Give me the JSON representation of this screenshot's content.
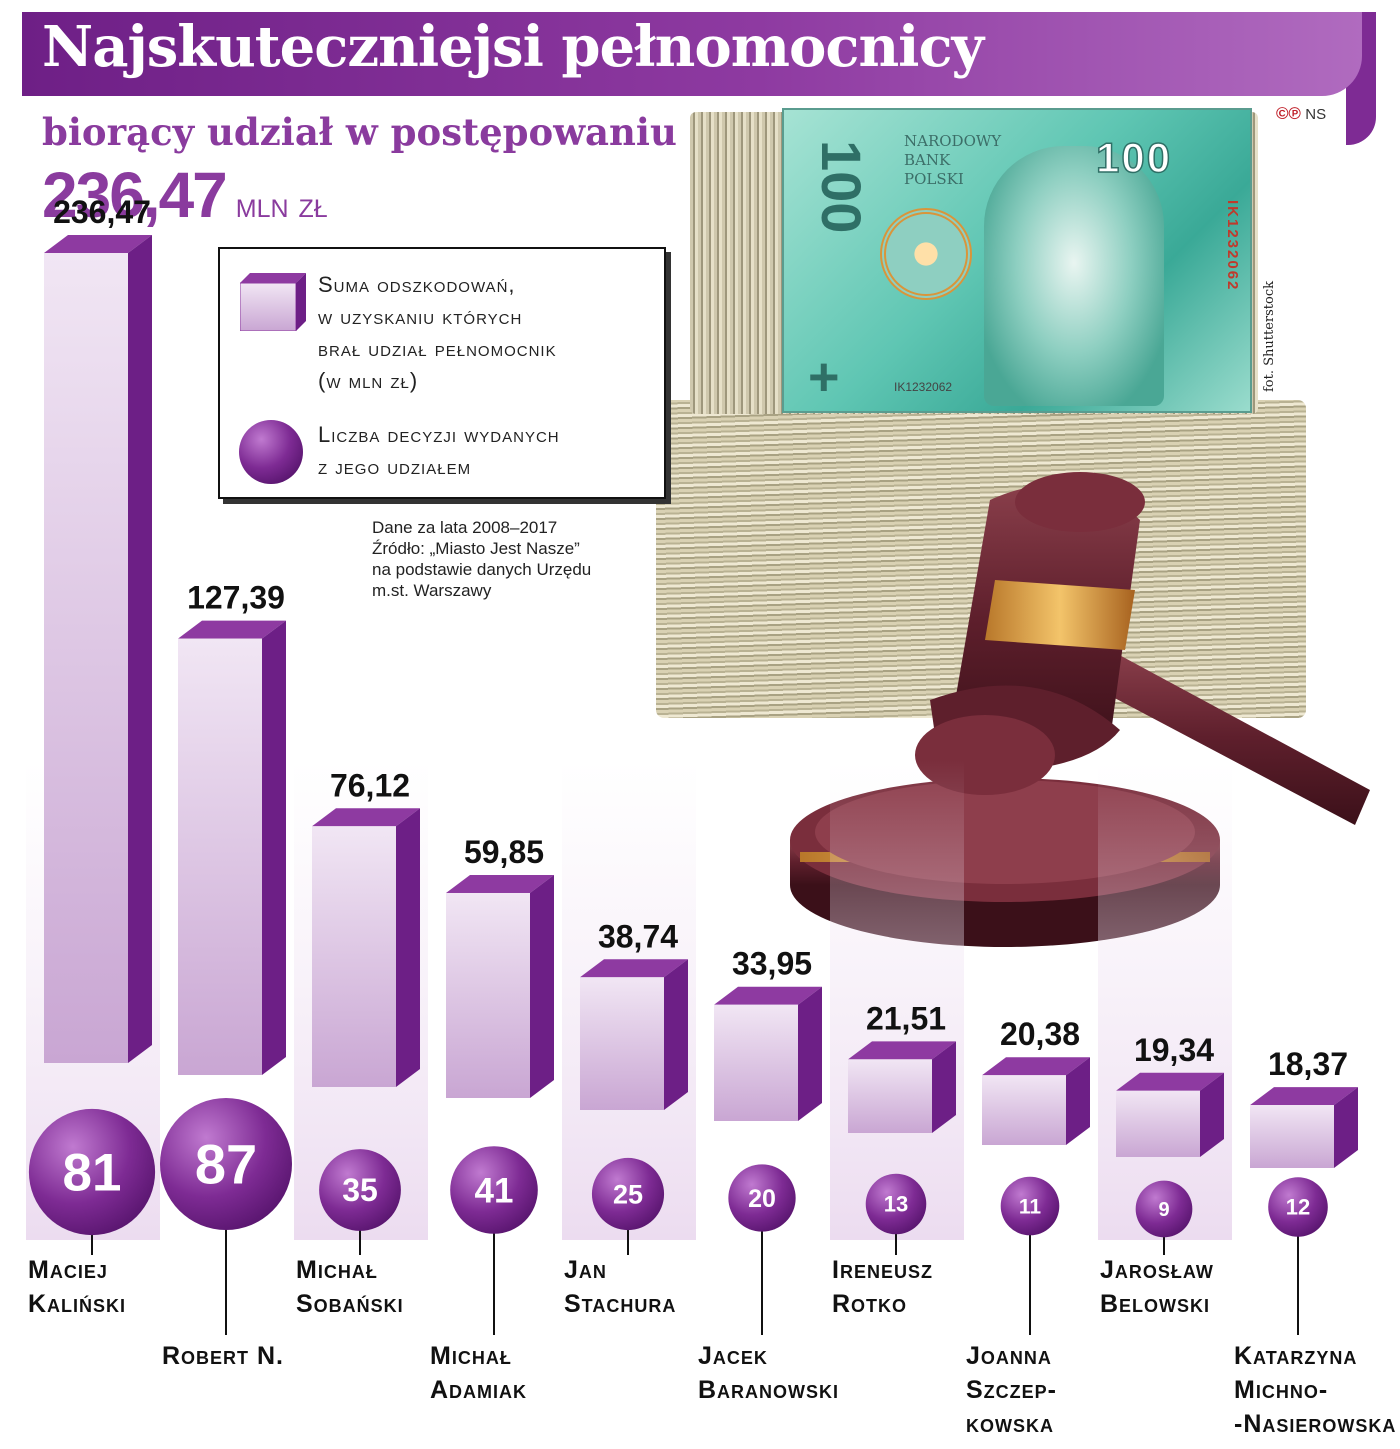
{
  "title": "Najskuteczniejsi pełnomocnicy",
  "subtitle": "biorący udział w postępowaniu",
  "total": {
    "value": "236,47",
    "unit": "mln zł"
  },
  "copyright": {
    "symbols": "©℗",
    "initials": "NS"
  },
  "photo_credit": "fot. Shutterstock",
  "legend": {
    "cube_label": [
      "Suma odszkodowań,",
      "w uzyskaniu których",
      "brał udział pełnomocnik",
      "(w mln zł)"
    ],
    "ball_label": [
      "Liczba decyzji wydanych",
      "z jego udziałem"
    ]
  },
  "source_note": [
    "Dane za lata 2008–2017",
    "Źródło: „Miasto Jest Nasze”",
    "na podstawie danych Urzędu",
    "m.st. Warszawy"
  ],
  "banknote": {
    "value": "100",
    "bank": "NARODOWY\nBANK\nPOLSKI",
    "serial": "IK1232062",
    "serial_small": "IK1232062",
    "mark": "+"
  },
  "colors": {
    "bar_front_top": "#f1e6f4",
    "bar_front_bottom": "#c9a6d3",
    "bar_side": "#6d1f86",
    "bar_top": "#8e3aa1",
    "ball": "#7e2b94",
    "accent": "#8a3b9e"
  },
  "chart_data": {
    "type": "bar",
    "title": "Najskuteczniejsi pełnomocnicy",
    "subtitle": "biorący udział w postępowaniu",
    "unit": "mln zł",
    "categories": [
      [
        "Maciej",
        "Kaliński"
      ],
      [
        "Robert N."
      ],
      [
        "Michał",
        "Sobański"
      ],
      [
        "Michał",
        "Adamiak"
      ],
      [
        "Jan",
        "Stachura"
      ],
      [
        "Jacek",
        "Baranowski"
      ],
      [
        "Ireneusz",
        "Rotko"
      ],
      [
        "Joanna",
        "Szczep-",
        "kowska"
      ],
      [
        "Jarosław",
        "Belowski"
      ],
      [
        "Katarzyna",
        "Michno-",
        "-Nasierowska"
      ]
    ],
    "series": [
      {
        "name": "Suma odszkodowań, w uzyskaniu których brał udział pełnomocnik (w mln zł)",
        "values": [
          236.47,
          127.39,
          76.12,
          59.85,
          38.74,
          33.95,
          21.51,
          20.38,
          19.34,
          18.37
        ],
        "labels": [
          "236,47",
          "127,39",
          "76,12",
          "59,85",
          "38,74",
          "33,95",
          "21,51",
          "20,38",
          "19,34",
          "18,37"
        ]
      },
      {
        "name": "Liczba decyzji wydanych z jego udziałem",
        "values": [
          81,
          87,
          35,
          41,
          25,
          20,
          13,
          11,
          9,
          12
        ],
        "labels": [
          "81",
          "87",
          "35",
          "41",
          "25",
          "20",
          "13",
          "11",
          "9",
          "12"
        ]
      }
    ]
  }
}
